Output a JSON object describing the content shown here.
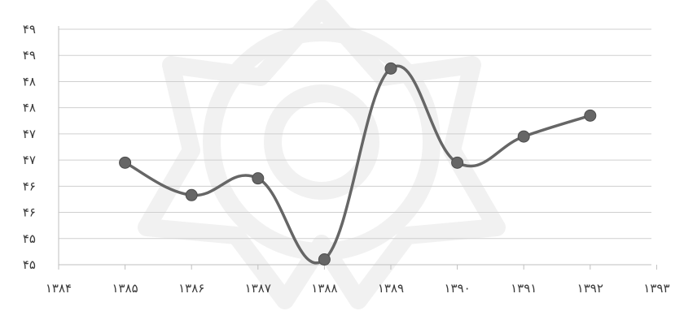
{
  "chart_data": {
    "type": "line",
    "title": "",
    "xlabel": "",
    "ylabel": "",
    "x_tick_labels": [
      "۱۳۸۴",
      "۱۳۸۵",
      "۱۳۸۶",
      "۱۳۸۷",
      "۱۳۸۸",
      "۱۳۸۹",
      "۱۳۹۰",
      "۱۳۹۱",
      "۱۳۹۲",
      "۱۳۹۳"
    ],
    "y_tick_labels": [
      "۴۵",
      "۴۵",
      "۴۶",
      "۴۶",
      "۴۷",
      "۴۷",
      "۴۸",
      "۴۸",
      "۴۹",
      "۴۹"
    ],
    "ylim": [
      45,
      49.5
    ],
    "grid": true,
    "legend": "none",
    "series": [
      {
        "x": [
          1385,
          1386,
          1387,
          1388,
          1389,
          1390,
          1391,
          1392
        ],
        "values": [
          46.95,
          46.33,
          46.65,
          45.1,
          48.75,
          46.95,
          47.45,
          47.85
        ],
        "color": "#666666"
      }
    ]
  }
}
